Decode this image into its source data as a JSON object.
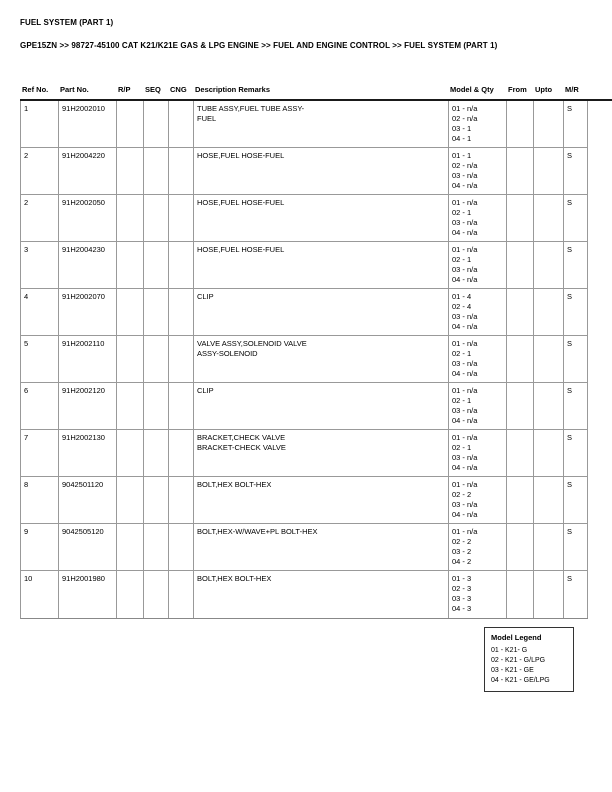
{
  "page": {
    "title": "FUEL SYSTEM (PART 1)",
    "breadcrumb": "GPE15ZN >> 98727-45100 CAT K21/K21E GAS & LPG ENGINE >> FUEL AND ENGINE CONTROL >> FUEL SYSTEM (PART 1)"
  },
  "table": {
    "columns": [
      "Ref No.",
      "Part No.",
      "R/P",
      "SEQ",
      "CNG",
      "Description Remarks",
      "Model & Qty",
      "From",
      "Upto",
      "M/R"
    ],
    "rows": [
      {
        "ref": "1",
        "part": "91H2002010",
        "rp": "",
        "seq": "",
        "cng": "",
        "desc": [
          "TUBE ASSY,FUEL TUBE ASSY-",
          "FUEL"
        ],
        "qty": [
          "01 - n/a",
          "02 - n/a",
          "03 - 1",
          "04 - 1"
        ],
        "from": "",
        "upto": "",
        "mr": "S"
      },
      {
        "ref": "2",
        "part": "91H2004220",
        "rp": "",
        "seq": "",
        "cng": "",
        "desc": [
          "HOSE,FUEL HOSE-FUEL"
        ],
        "qty": [
          "01 - 1",
          "02 - n/a",
          "03 - n/a",
          "04 - n/a"
        ],
        "from": "",
        "upto": "",
        "mr": "S"
      },
      {
        "ref": "2",
        "part": "91H2002050",
        "rp": "",
        "seq": "",
        "cng": "",
        "desc": [
          "HOSE,FUEL HOSE-FUEL"
        ],
        "qty": [
          "01 - n/a",
          "02 - 1",
          "03 - n/a",
          "04 - n/a"
        ],
        "from": "",
        "upto": "",
        "mr": "S"
      },
      {
        "ref": "3",
        "part": "91H2004230",
        "rp": "",
        "seq": "",
        "cng": "",
        "desc": [
          "HOSE,FUEL HOSE-FUEL"
        ],
        "qty": [
          "01 - n/a",
          "02 - 1",
          "03 - n/a",
          "04 - n/a"
        ],
        "from": "",
        "upto": "",
        "mr": "S"
      },
      {
        "ref": "4",
        "part": "91H2002070",
        "rp": "",
        "seq": "",
        "cng": "",
        "desc": [
          "CLIP"
        ],
        "qty": [
          "01 - 4",
          "02 - 4",
          "03 - n/a",
          "04 - n/a"
        ],
        "from": "",
        "upto": "",
        "mr": "S"
      },
      {
        "ref": "5",
        "part": "91H2002110",
        "rp": "",
        "seq": "",
        "cng": "",
        "desc": [
          "VALVE ASSY,SOLENOID VALVE",
          "ASSY-SOLENOID"
        ],
        "qty": [
          "01 - n/a",
          "02 - 1",
          "03 - n/a",
          "04 - n/a"
        ],
        "from": "",
        "upto": "",
        "mr": "S"
      },
      {
        "ref": "6",
        "part": "91H2002120",
        "rp": "",
        "seq": "",
        "cng": "",
        "desc": [
          "CLIP"
        ],
        "qty": [
          "01 - n/a",
          "02 - 1",
          "03 - n/a",
          "04 - n/a"
        ],
        "from": "",
        "upto": "",
        "mr": "S"
      },
      {
        "ref": "7",
        "part": "91H2002130",
        "rp": "",
        "seq": "",
        "cng": "",
        "desc": [
          "BRACKET,CHECK VALVE",
          "BRACKET-CHECK VALVE"
        ],
        "qty": [
          "01 - n/a",
          "02 - 1",
          "03 - n/a",
          "04 - n/a"
        ],
        "from": "",
        "upto": "",
        "mr": "S"
      },
      {
        "ref": "8",
        "part": "9042501120",
        "rp": "",
        "seq": "",
        "cng": "",
        "desc": [
          "BOLT,HEX BOLT-HEX"
        ],
        "qty": [
          "01 - n/a",
          "02 - 2",
          "03 - n/a",
          "04 - n/a"
        ],
        "from": "",
        "upto": "",
        "mr": "S"
      },
      {
        "ref": "9",
        "part": "9042505120",
        "rp": "",
        "seq": "",
        "cng": "",
        "desc": [
          "BOLT,HEX-W/WAVE+PL BOLT-HEX"
        ],
        "qty": [
          "01 - n/a",
          "02 - 2",
          "03 - 2",
          "04 - 2"
        ],
        "from": "",
        "upto": "",
        "mr": "S"
      },
      {
        "ref": "10",
        "part": "91H2001980",
        "rp": "",
        "seq": "",
        "cng": "",
        "desc": [
          "BOLT,HEX BOLT-HEX"
        ],
        "qty": [
          "01 - 3",
          "02 - 3",
          "03 - 3",
          "04 - 3"
        ],
        "from": "",
        "upto": "",
        "mr": "S"
      }
    ]
  },
  "legend": {
    "title": "Model Legend",
    "items": [
      "01 - K21- G",
      "02 - K21 - G/LPG",
      "03 - K21 - GE",
      "04 - K21 - GE/LPG"
    ]
  }
}
